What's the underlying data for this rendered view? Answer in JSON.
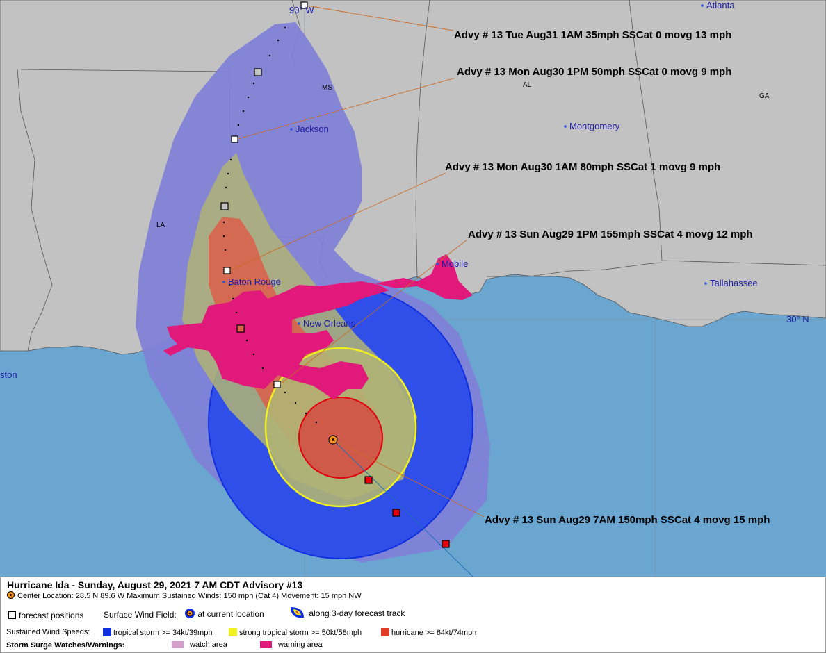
{
  "map": {
    "meridian_label": "90° W",
    "parallel_label": "30° N",
    "states": {
      "ms": "MS",
      "al": "AL",
      "ga": "GA",
      "la": "LA"
    },
    "cities": {
      "atlanta": "Atlanta",
      "jackson": "Jackson",
      "montgomery": "Montgomery",
      "baton_rouge": "Baton Rouge",
      "new_orleans": "New Orleans",
      "mobile": "Mobile",
      "tallahassee": "Tallahassee",
      "houston_partial": "ston"
    },
    "advisories": [
      "Advy # 13 Tue Aug31 1AM  35mph SSCat 0 movg 13 mph",
      "Advy # 13 Mon Aug30 1PM  50mph SSCat 0 movg 9 mph",
      "Advy # 13 Mon Aug30 1AM  80mph SSCat 1 movg 9 mph",
      "Advy # 13 Sun Aug29 1PM  155mph SSCat 4 movg 12 mph",
      "Advy # 13 Sun Aug29 7AM  150mph SSCat 4 movg 15 mph"
    ],
    "colors": {
      "water": "#6aa6d0",
      "land": "#c2c2c2",
      "cone": "#8080d8",
      "tropical_storm": "#2f4fe8",
      "strong_tropical_storm": "#f0f020",
      "hurricane": "#e03c28",
      "warning": "#e0197a",
      "watch": "#d59ccc"
    }
  },
  "legend": {
    "title": "Hurricane Ida  -  Sunday, August 29, 2021  7 AM CDT   Advisory #13",
    "center_line": "Center Location: 28.5 N  89.6 W   Maximum Sustained Winds: 150 mph (Cat 4) Movement: 15 mph NW",
    "forecast_positions": "forecast positions",
    "surface_wind_field": "Surface Wind Field:",
    "at_current_location": "at current location",
    "along_track": "along 3-day forecast track",
    "sustained_wind_speeds": "Sustained Wind Speeds:",
    "tropical_storm": "tropical storm >= 34kt/39mph",
    "strong_tropical_storm": "strong tropical storm >= 50kt/58mph",
    "hurricane": "hurricane >= 64kt/74mph",
    "storm_surge": "Storm Surge Watches/Warnings:",
    "watch_area": "watch area",
    "warning_area": "warning area"
  }
}
